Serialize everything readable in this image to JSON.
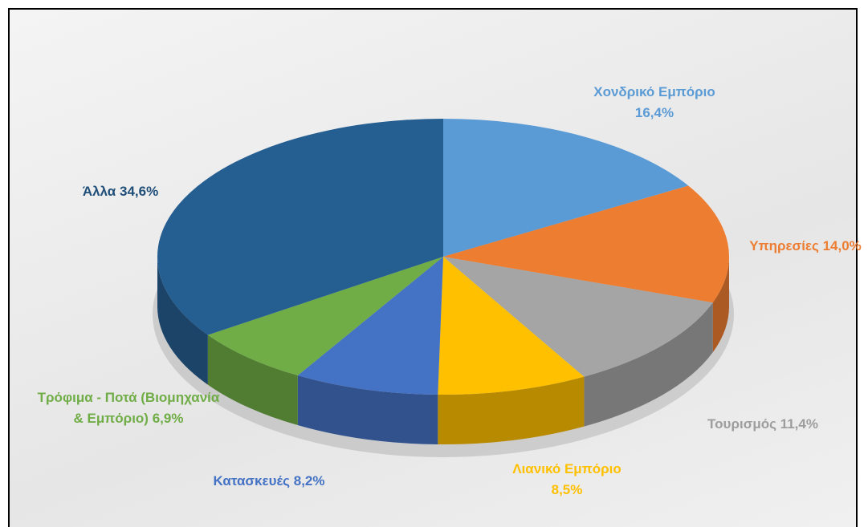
{
  "chart_data": {
    "type": "pie3d",
    "categories": [
      "Χονδρικό Εμπόριο",
      "Υπηρεσίες",
      "Τουρισμός",
      "Λιανικό Εμπόριο",
      "Κατασκευές",
      "Τρόφιμα - Ποτά (Βιομηχανία & Εμπόριο)",
      "Άλλα"
    ],
    "values": [
      16.4,
      14.0,
      11.4,
      8.5,
      8.2,
      6.9,
      34.6
    ],
    "value_labels": [
      "16,4%",
      "14,0%",
      "11,4%",
      "8,5%",
      "8,2%",
      "6,9%",
      "34,6%"
    ],
    "colors": [
      "#5b9bd5",
      "#ed7d31",
      "#a5a5a5",
      "#ffc000",
      "#4472c4",
      "#70ad47",
      "#255e91"
    ]
  }
}
